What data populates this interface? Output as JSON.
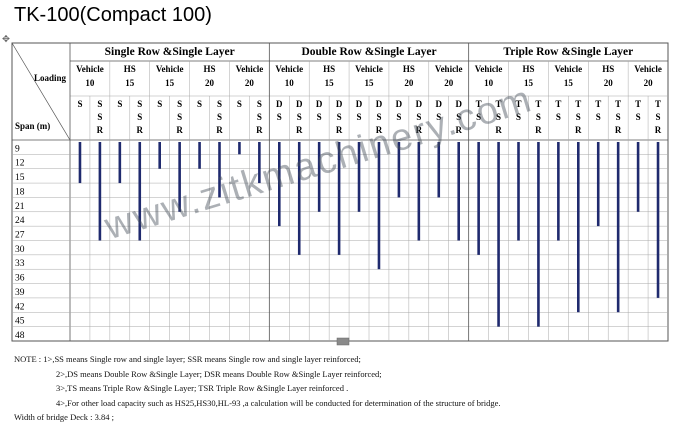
{
  "title": "TK-100(Compact 100)",
  "header": {
    "loading": "Loading",
    "span": "Span (m)",
    "groups": [
      {
        "name": "Single Row &Single Layer",
        "loads": [
          {
            "label1": "Vehicle",
            "label2": "10",
            "codes": [
              [
                "S",
                "",
                ""
              ],
              [
                "S",
                "S",
                "R"
              ]
            ]
          },
          {
            "label1": "HS",
            "label2": "15",
            "codes": [
              [
                "S",
                "",
                ""
              ],
              [
                "S",
                "S",
                "R"
              ]
            ]
          },
          {
            "label1": "Vehicle",
            "label2": "15",
            "codes": [
              [
                "S",
                "",
                ""
              ],
              [
                "S",
                "S",
                "R"
              ]
            ]
          },
          {
            "label1": "HS",
            "label2": "20",
            "codes": [
              [
                "S",
                "",
                ""
              ],
              [
                "S",
                "S",
                "R"
              ]
            ]
          },
          {
            "label1": "Vehicle",
            "label2": "20",
            "codes": [
              [
                "S",
                "",
                ""
              ],
              [
                "S",
                "S",
                "R"
              ]
            ]
          }
        ]
      },
      {
        "name": "Double Row &Single Layer",
        "loads": [
          {
            "label1": "Vehicle",
            "label2": "10",
            "codes": [
              [
                "D",
                "S",
                ""
              ],
              [
                "D",
                "S",
                "R"
              ]
            ]
          },
          {
            "label1": "HS",
            "label2": "15",
            "codes": [
              [
                "D",
                "S",
                ""
              ],
              [
                "D",
                "S",
                "R"
              ]
            ]
          },
          {
            "label1": "Vehicle",
            "label2": "15",
            "codes": [
              [
                "D",
                "S",
                ""
              ],
              [
                "D",
                "S",
                "R"
              ]
            ]
          },
          {
            "label1": "HS",
            "label2": "20",
            "codes": [
              [
                "D",
                "S",
                ""
              ],
              [
                "D",
                "S",
                "R"
              ]
            ]
          },
          {
            "label1": "Vehicle",
            "label2": "20",
            "codes": [
              [
                "D",
                "S",
                ""
              ],
              [
                "D",
                "S",
                "R"
              ]
            ]
          }
        ]
      },
      {
        "name": "Triple Row &Single Layer",
        "loads": [
          {
            "label1": "Vehicle",
            "label2": "10",
            "codes": [
              [
                "T",
                "S",
                ""
              ],
              [
                "T",
                "S",
                "R"
              ]
            ]
          },
          {
            "label1": "HS",
            "label2": "15",
            "codes": [
              [
                "T",
                "S",
                ""
              ],
              [
                "T",
                "S",
                "R"
              ]
            ]
          },
          {
            "label1": "Vehicle",
            "label2": "15",
            "codes": [
              [
                "T",
                "S",
                ""
              ],
              [
                "T",
                "S",
                "R"
              ]
            ]
          },
          {
            "label1": "HS",
            "label2": "20",
            "codes": [
              [
                "T",
                "S",
                ""
              ],
              [
                "T",
                "S",
                "R"
              ]
            ]
          },
          {
            "label1": "Vehicle",
            "label2": "20",
            "codes": [
              [
                "T",
                "S",
                ""
              ],
              [
                "T",
                "S",
                "R"
              ]
            ]
          }
        ]
      }
    ]
  },
  "spans": [
    "9",
    "12",
    "15",
    "18",
    "21",
    "24",
    "27",
    "30",
    "33",
    "36",
    "39",
    "42",
    "45",
    "48"
  ],
  "chart_data": {
    "type": "bar",
    "categories": [
      "SS Vehicle 10",
      "SSR Vehicle 10",
      "SS HS 15",
      "SSR HS 15",
      "SS Vehicle 15",
      "SSR Vehicle 15",
      "SS HS 20",
      "SSR HS 20",
      "SS Vehicle 20",
      "SSR Vehicle 20",
      "DS Vehicle 10",
      "DSR Vehicle 10",
      "DS HS 15",
      "DSR HS 15",
      "DS Vehicle 15",
      "DSR Vehicle 15",
      "DS HS 20",
      "DSR HS 20",
      "DS Vehicle 20",
      "DSR Vehicle 20",
      "TS Vehicle 10",
      "TSR Vehicle 10",
      "TS HS 15",
      "TSR HS 15",
      "TS Vehicle 15",
      "TSR Vehicle 15",
      "TS HS 20",
      "TSR HS 20",
      "TS Vehicle 20",
      "TSR Vehicle 20"
    ],
    "start": 9,
    "values": [
      18,
      30,
      18,
      30,
      15,
      24,
      15,
      21,
      12,
      18,
      27,
      33,
      24,
      33,
      24,
      36,
      21,
      30,
      21,
      30,
      33,
      48,
      30,
      48,
      30,
      45,
      27,
      45,
      24,
      42
    ],
    "ylabel": "Span (m)",
    "ylim": [
      9,
      48
    ]
  },
  "watermark": "www.zitkmachinery.com",
  "notes": {
    "line1": "NOTE : 1>,SS means Single row and single layer; SSR means Single row and single layer reinforced;",
    "line2": "2>,DS means Double Row &Single Layer; DSR means Double Row &Single Layer reinforced;",
    "line3": "3>,TS means Triple Row &Single Layer; TSR Triple Row &Single Layer reinforced .",
    "line4": "4>,For other load capacity such as HS25,HS30,HL-93 ,a calculation will be conducted for determination of the structure of bridge.",
    "width": "Width of bridge Deck : 3.84 ;"
  },
  "colors": {
    "bar": "#1f2a6e",
    "border": "#555555",
    "grid": "#a8a8a8"
  }
}
